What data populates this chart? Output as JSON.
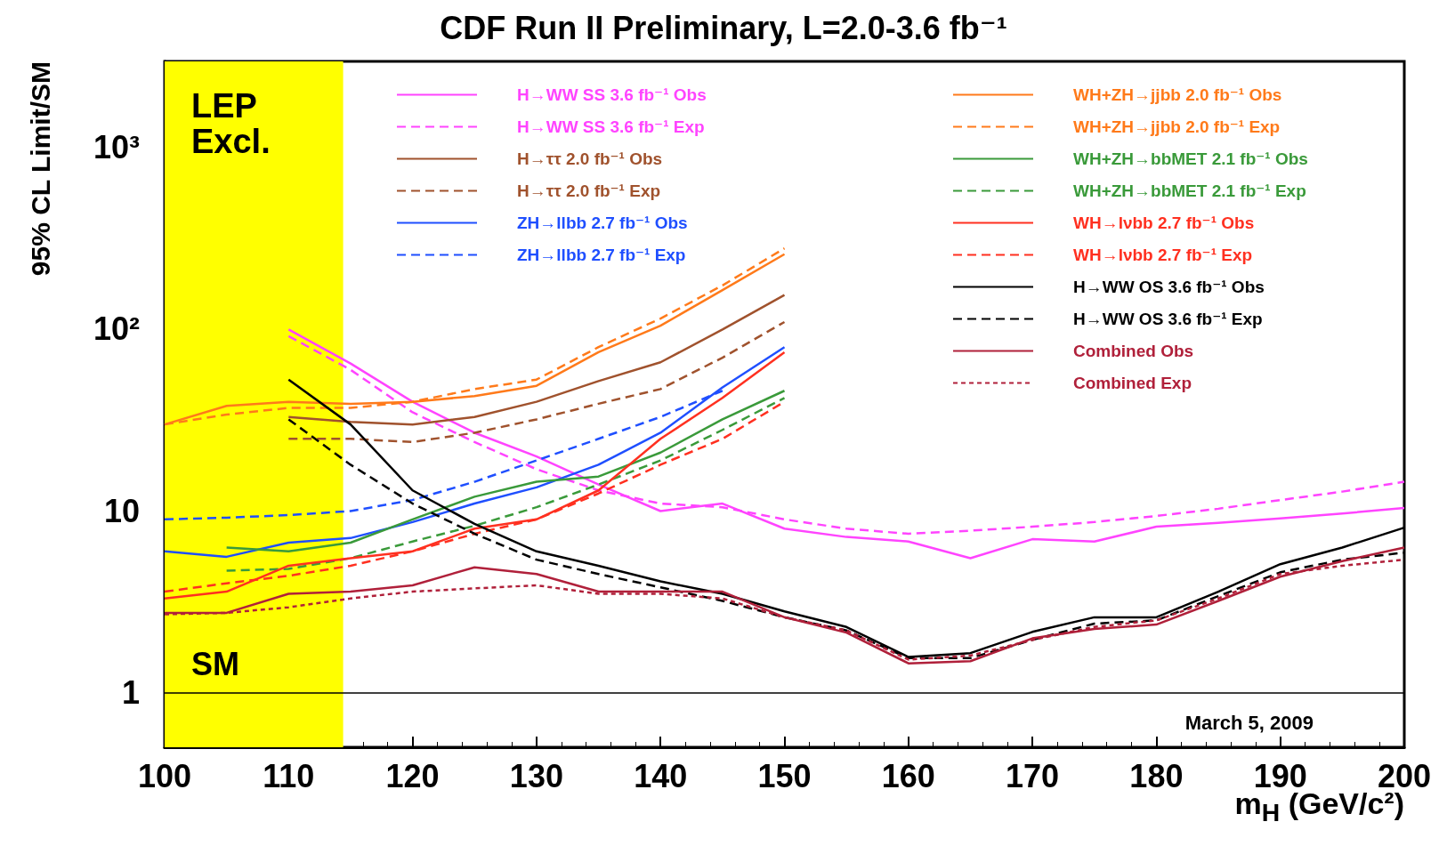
{
  "chart_data": {
    "type": "line",
    "title": "CDF Run II Preliminary, L=2.0-3.6 fb⁻¹",
    "xlabel": "m$_{H}$ (GeV/c²)",
    "ylabel": "95% CL Limit/SM",
    "log": "y",
    "grid": false,
    "legend": "top",
    "marker": "none",
    "xlim": [
      100,
      200
    ],
    "xticks": [
      100,
      110,
      120,
      130,
      140,
      150,
      160,
      170,
      180,
      190,
      200
    ],
    "ylim": [
      0.5,
      3000
    ],
    "yticks": [
      1,
      10,
      {
        "value": 100,
        "label": "10²"
      },
      {
        "value": 1000,
        "label": "10³"
      }
    ],
    "bands": [
      {
        "axis": "x",
        "from": 100,
        "to": 114.4,
        "label": "LEP Excl.",
        "color": "#ffff00"
      }
    ],
    "ref_lines": [
      {
        "axis": "y",
        "value": 1,
        "label": "SM",
        "color": "#000000"
      }
    ],
    "annotations": [
      "March 5, 2009"
    ],
    "series": [
      {
        "name": "H→WW SS 3.6 fb⁻¹ Obs",
        "color": "#ff44ff",
        "line_style": "solid",
        "x": [
          110,
          115,
          120,
          125,
          130,
          135,
          140,
          145,
          150,
          155,
          160,
          165,
          170,
          175,
          180,
          185,
          190,
          195,
          200
        ],
        "values": [
          100,
          65,
          40,
          27,
          20,
          14,
          10,
          11,
          8,
          7.2,
          6.8,
          5.5,
          7.0,
          6.8,
          8.2,
          8.6,
          9.1,
          9.7,
          10.4
        ]
      },
      {
        "name": "H→WW SS 3.6 fb⁻¹ Exp",
        "color": "#ff44ff",
        "line_style": "dashed",
        "x": [
          110,
          115,
          120,
          125,
          130,
          135,
          140,
          145,
          150,
          155,
          160,
          165,
          170,
          175,
          180,
          185,
          190,
          195,
          200
        ],
        "values": [
          92,
          60,
          35,
          24,
          17,
          13,
          11,
          10.5,
          9,
          8,
          7.5,
          7.8,
          8.2,
          8.7,
          9.4,
          10.3,
          11.5,
          12.8,
          14.5
        ]
      },
      {
        "name": "H→ττ 2.0 fb⁻¹ Obs",
        "color": "#a0522d",
        "line_style": "solid",
        "x": [
          110,
          115,
          120,
          125,
          130,
          135,
          140,
          145,
          150
        ],
        "values": [
          33,
          31,
          30,
          33,
          40,
          52,
          66,
          100,
          155
        ]
      },
      {
        "name": "H→ττ 2.0 fb⁻¹ Exp",
        "color": "#a0522d",
        "line_style": "dashed",
        "x": [
          110,
          115,
          120,
          125,
          130,
          135,
          140,
          145,
          150
        ],
        "values": [
          25,
          25,
          24,
          27,
          32,
          39,
          47,
          70,
          110
        ]
      },
      {
        "name": "ZH→llbb 2.7 fb⁻¹ Obs",
        "color": "#1f4fff",
        "line_style": "solid",
        "x": [
          100,
          105,
          110,
          115,
          120,
          125,
          130,
          135,
          140,
          145,
          150
        ],
        "values": [
          6.0,
          5.6,
          6.7,
          7.1,
          8.7,
          11,
          13.5,
          18,
          27,
          48,
          80
        ]
      },
      {
        "name": "ZH→llbb 2.7 fb⁻¹ Exp",
        "color": "#1f4fff",
        "line_style": "dashed",
        "x": [
          100,
          105,
          110,
          115,
          120,
          125,
          130,
          135,
          140,
          145
        ],
        "values": [
          9.0,
          9.2,
          9.5,
          10,
          11.5,
          14.5,
          19,
          25,
          33,
          46
        ]
      },
      {
        "name": "WH+ZH→jjbb 2.0 fb⁻¹ Obs",
        "color": "#ff7a1a",
        "line_style": "solid",
        "x": [
          100,
          105,
          110,
          115,
          120,
          125,
          130,
          135,
          140,
          145,
          150
        ],
        "values": [
          30,
          38,
          40,
          39,
          40,
          43,
          49,
          75,
          105,
          165,
          260
        ]
      },
      {
        "name": "WH+ZH→jjbb 2.0 fb⁻¹ Exp",
        "color": "#ff7a1a",
        "line_style": "dashed",
        "x": [
          100,
          105,
          110,
          115,
          120,
          125,
          130,
          135,
          140,
          145,
          150
        ],
        "values": [
          30,
          34,
          37,
          37,
          40,
          47,
          53,
          80,
          115,
          175,
          280
        ]
      },
      {
        "name": "WH+ZH→bbMET 2.1 fb⁻¹ Obs",
        "color": "#3a9a3a",
        "line_style": "solid",
        "x": [
          105,
          110,
          115,
          120,
          125,
          130,
          135,
          140,
          145,
          150
        ],
        "values": [
          6.3,
          6.0,
          6.7,
          9.0,
          12,
          14.5,
          15.5,
          21,
          32,
          46
        ]
      },
      {
        "name": "WH+ZH→bbMET 2.1 fb⁻¹ Exp",
        "color": "#3a9a3a",
        "line_style": "dashed",
        "x": [
          105,
          110,
          115,
          120,
          125,
          130,
          135,
          140,
          145,
          150
        ],
        "values": [
          4.7,
          4.8,
          5.5,
          6.8,
          8.3,
          10.5,
          14,
          19,
          28,
          42
        ]
      },
      {
        "name": "WH→lνbb 2.7 fb⁻¹ Obs",
        "color": "#ff3020",
        "line_style": "solid",
        "x": [
          100,
          105,
          110,
          115,
          120,
          125,
          130,
          135,
          140,
          145,
          150
        ],
        "values": [
          3.3,
          3.6,
          5.0,
          5.5,
          6.0,
          8.0,
          9.0,
          13,
          25,
          42,
          75
        ]
      },
      {
        "name": "WH→lνbb 2.7 fb⁻¹ Exp",
        "color": "#ff3020",
        "line_style": "dashed",
        "x": [
          100,
          105,
          110,
          115,
          120,
          125,
          130,
          135,
          140,
          145,
          150
        ],
        "values": [
          3.6,
          4.0,
          4.4,
          5.0,
          6.0,
          7.5,
          9.0,
          12.5,
          18,
          25,
          40
        ]
      },
      {
        "name": "H→WW OS 3.6 fb⁻¹ Obs",
        "color": "#000000",
        "line_style": "solid",
        "x": [
          110,
          115,
          120,
          125,
          130,
          135,
          140,
          145,
          150,
          155,
          160,
          165,
          170,
          175,
          180,
          185,
          190,
          195,
          200
        ],
        "values": [
          53,
          30,
          13,
          8.5,
          6.0,
          5.0,
          4.1,
          3.5,
          2.8,
          2.3,
          1.57,
          1.65,
          2.16,
          2.6,
          2.6,
          3.6,
          5.1,
          6.3,
          8.1
        ]
      },
      {
        "name": "H→WW OS 3.6 fb⁻¹ Exp",
        "color": "#000000",
        "line_style": "dashed",
        "x": [
          110,
          115,
          120,
          125,
          130,
          135,
          140,
          145,
          150,
          155,
          160,
          165,
          170,
          175,
          180,
          185,
          190,
          195,
          200
        ],
        "values": [
          32,
          18,
          11,
          7.5,
          5.4,
          4.5,
          3.8,
          3.2,
          2.6,
          2.2,
          1.55,
          1.55,
          1.95,
          2.4,
          2.5,
          3.4,
          4.6,
          5.4,
          5.9
        ]
      },
      {
        "name": "Combined Obs",
        "color": "#b0203a",
        "line_style": "solid",
        "x": [
          100,
          105,
          110,
          115,
          120,
          125,
          130,
          135,
          140,
          145,
          150,
          155,
          160,
          165,
          170,
          175,
          180,
          185,
          190,
          195,
          200
        ],
        "values": [
          2.75,
          2.75,
          3.5,
          3.6,
          3.9,
          4.9,
          4.5,
          3.6,
          3.6,
          3.6,
          2.6,
          2.14,
          1.45,
          1.49,
          1.99,
          2.24,
          2.37,
          3.2,
          4.35,
          5.3,
          6.3
        ]
      },
      {
        "name": "Combined Exp",
        "color": "#b0203a",
        "line_style": "dotted",
        "x": [
          100,
          105,
          110,
          115,
          120,
          125,
          130,
          135,
          140,
          145,
          150,
          155,
          160,
          165,
          170,
          175,
          180,
          185,
          190,
          195,
          200
        ],
        "values": [
          2.7,
          2.75,
          2.95,
          3.3,
          3.6,
          3.75,
          3.9,
          3.5,
          3.5,
          3.3,
          2.6,
          2.2,
          1.52,
          1.6,
          1.95,
          2.3,
          2.5,
          3.3,
          4.5,
          5.0,
          5.4
        ]
      }
    ]
  }
}
